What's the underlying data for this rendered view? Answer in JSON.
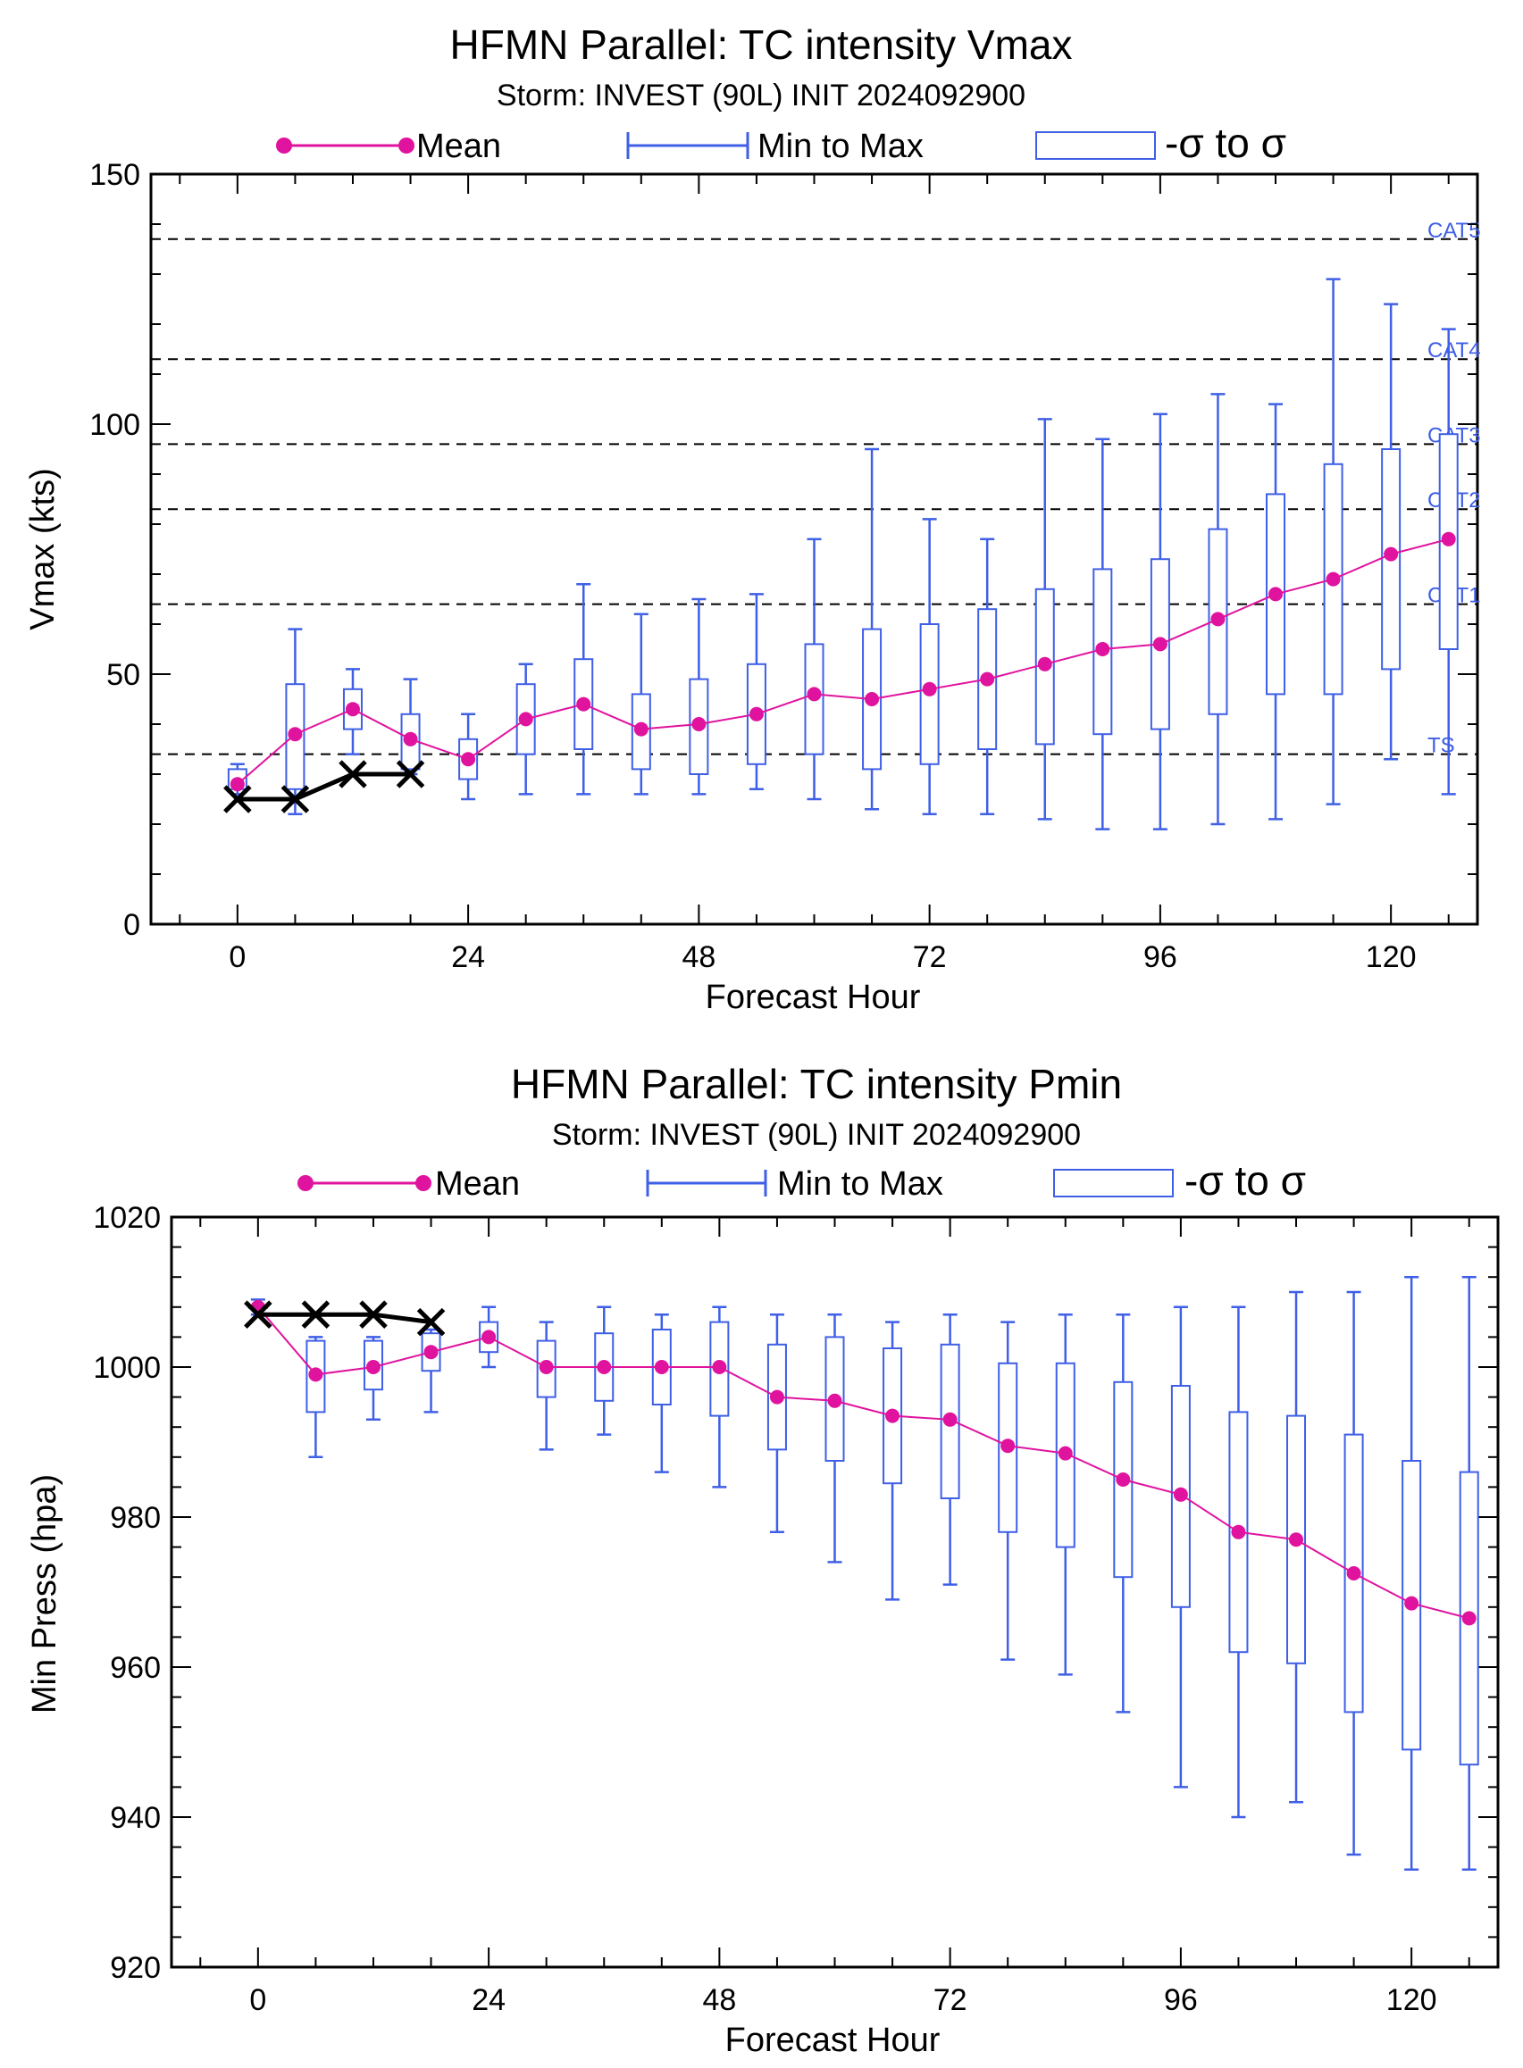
{
  "colors": {
    "mean": "#e0139e",
    "blue": "#3f5fe6",
    "obs": "#000000",
    "reference_line": "#000000"
  },
  "legend": {
    "mean": "Mean",
    "range": "Min to Max",
    "sigma": "-σ to σ"
  },
  "chart_data": [
    {
      "type": "box",
      "title": "HFMN Parallel: TC intensity Vmax",
      "subtitle": "Storm: INVEST (90L) INIT 2024092900",
      "xlabel": "Forecast Hour",
      "ylabel": "Vmax (kts)",
      "xlim": [
        -9,
        129
      ],
      "ylim": [
        0,
        150
      ],
      "xticks": [
        "0",
        "24",
        "48",
        "72",
        "96",
        "120"
      ],
      "yticks": [
        "0",
        "50",
        "100",
        "150"
      ],
      "grid": false,
      "reference_lines": [
        {
          "label": "TS",
          "value": 34
        },
        {
          "label": "CAT1",
          "value": 64
        },
        {
          "label": "CAT2",
          "value": 83
        },
        {
          "label": "CAT3",
          "value": 96
        },
        {
          "label": "CAT4",
          "value": 113
        },
        {
          "label": "CAT5",
          "value": 137
        }
      ],
      "x": [
        0,
        6,
        12,
        18,
        24,
        30,
        36,
        42,
        48,
        54,
        60,
        66,
        72,
        78,
        84,
        90,
        96,
        102,
        108,
        114,
        120,
        126
      ],
      "series": [
        {
          "name": "Mean",
          "values": [
            28,
            38,
            43,
            37,
            33,
            41,
            44,
            39,
            40,
            42,
            46,
            45,
            47,
            49,
            52,
            55,
            56,
            61,
            66,
            69,
            74,
            77
          ]
        },
        {
          "name": "Min to Max",
          "min": [
            26,
            22,
            34,
            30,
            25,
            26,
            26,
            26,
            26,
            27,
            25,
            23,
            22,
            22,
            21,
            19,
            19,
            20,
            21,
            24,
            33,
            26
          ],
          "max": [
            32,
            59,
            51,
            49,
            42,
            52,
            68,
            62,
            65,
            66,
            77,
            95,
            81,
            77,
            101,
            97,
            102,
            106,
            104,
            129,
            124,
            119
          ]
        },
        {
          "name": "-σ to σ",
          "low": [
            27,
            27,
            39,
            31,
            29,
            34,
            35,
            31,
            30,
            32,
            34,
            31,
            32,
            35,
            36,
            38,
            39,
            42,
            46,
            46,
            51,
            55
          ],
          "high": [
            31,
            48,
            47,
            42,
            37,
            48,
            53,
            46,
            49,
            52,
            56,
            59,
            60,
            63,
            67,
            71,
            73,
            79,
            86,
            92,
            95,
            98
          ]
        }
      ],
      "observed": {
        "x": [
          0,
          6,
          12,
          18
        ],
        "values": [
          25,
          25,
          30,
          30
        ]
      }
    },
    {
      "type": "box",
      "title": "HFMN Parallel: TC intensity Pmin",
      "subtitle": "Storm: INVEST (90L) INIT 2024092900",
      "xlabel": "Forecast Hour",
      "ylabel": "Min Press (hpa)",
      "xlim": [
        -9,
        129
      ],
      "ylim": [
        920,
        1020
      ],
      "xticks": [
        "0",
        "24",
        "48",
        "72",
        "96",
        "120"
      ],
      "yticks": [
        "920",
        "940",
        "960",
        "980",
        "1000",
        "1020"
      ],
      "grid": false,
      "reference_lines": [],
      "x": [
        0,
        6,
        12,
        18,
        24,
        30,
        36,
        42,
        48,
        54,
        60,
        66,
        72,
        78,
        84,
        90,
        96,
        102,
        108,
        114,
        120,
        126
      ],
      "series": [
        {
          "name": "Mean",
          "values": [
            1008,
            999,
            1000,
            1002,
            1004,
            1000,
            1000,
            1000,
            1000,
            996,
            995.5,
            993.5,
            993,
            989.5,
            988.5,
            985,
            983,
            978,
            977,
            972.5,
            968.5,
            966.5
          ]
        },
        {
          "name": "Min to Max",
          "min": [
            1007,
            988,
            993,
            994,
            1000,
            989,
            991,
            986,
            984,
            978,
            974,
            969,
            971,
            961,
            959,
            954,
            944,
            940,
            942,
            935,
            933,
            933
          ],
          "max": [
            1009,
            1004,
            1004,
            1005,
            1008,
            1006,
            1008,
            1007,
            1008,
            1007,
            1007,
            1006,
            1007,
            1006,
            1007,
            1007,
            1008,
            1008,
            1010,
            1010,
            1012,
            1012
          ]
        },
        {
          "name": "-σ to σ",
          "low": [
            1008,
            994,
            997,
            999.5,
            1002,
            996,
            995.5,
            995,
            993.5,
            989,
            987.5,
            984.5,
            982.5,
            978,
            976,
            972,
            968,
            962,
            960.5,
            954,
            949,
            947
          ],
          "high": [
            1008,
            1003.5,
            1003.5,
            1004.5,
            1006,
            1003.5,
            1004.5,
            1005,
            1006,
            1003,
            1004,
            1002.5,
            1003,
            1000.5,
            1000.5,
            998,
            997.5,
            994,
            993.5,
            991,
            987.5,
            986
          ]
        }
      ],
      "observed": {
        "x": [
          0,
          6,
          12,
          18
        ],
        "values": [
          1007,
          1007,
          1007,
          1006
        ]
      }
    }
  ]
}
